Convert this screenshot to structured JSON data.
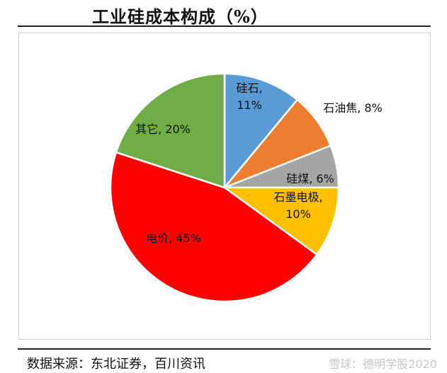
{
  "chart_data": {
    "type": "pie",
    "title": "工业硅成本构成（%）",
    "slices": [
      {
        "label": "硅石",
        "value": 11,
        "color": "#5b9bd5",
        "text": [
          "硅石,",
          "11%"
        ]
      },
      {
        "label": "石油焦",
        "value": 8,
        "color": "#ed7d31",
        "text": [
          "石油焦, 8%"
        ]
      },
      {
        "label": "硅煤",
        "value": 6,
        "color": "#a5a5a5",
        "text": [
          "硅煤, 6%"
        ]
      },
      {
        "label": "石墨电极",
        "value": 10,
        "color": "#ffc000",
        "text": [
          "石墨电极,",
          "10%"
        ]
      },
      {
        "label": "电价",
        "value": 45,
        "color": "#ff0000",
        "text": [
          "电价, 45%"
        ]
      },
      {
        "label": "其它",
        "value": 20,
        "color": "#70ad47",
        "text": [
          "其它, 20%"
        ]
      }
    ]
  },
  "footer": {
    "source": "数据来源：东北证券，百川资讯",
    "watermark": "雪球：德明学股2020"
  }
}
